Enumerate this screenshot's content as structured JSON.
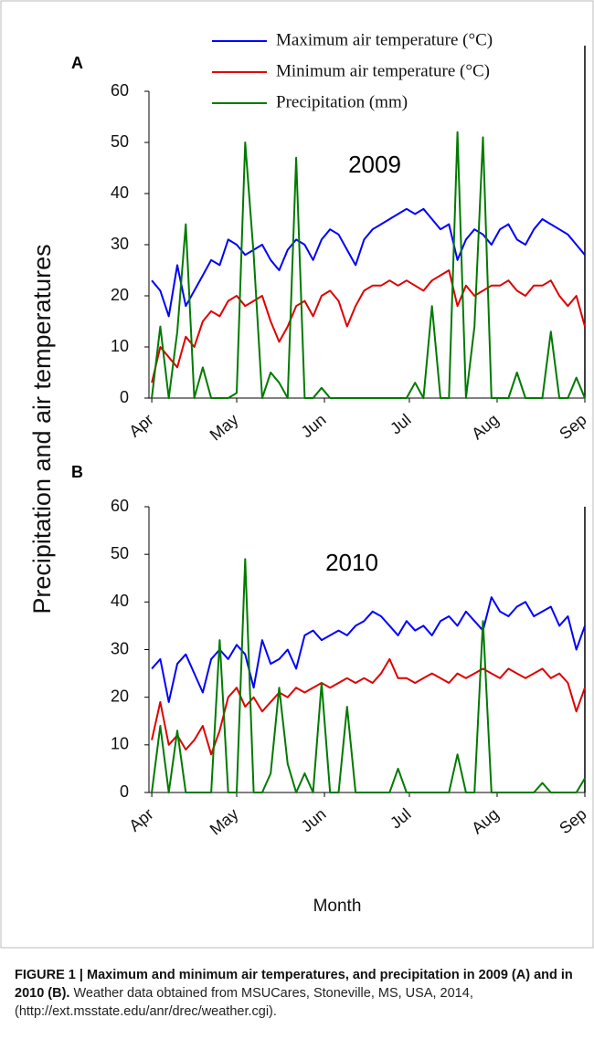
{
  "ylabel": "Precipitation and air temperatures",
  "xlabel": "Month",
  "caption": {
    "title": "FIGURE 1 | Maximum and minimum air temperatures, and precipitation in 2009 (A) and in 2010 (B).",
    "text": "Weather data obtained from MSUCares, Stoneville, MS, USA, 2014, (http://ext.msstate.edu/anr/drec/weather.cgi)."
  },
  "chart_data": [
    {
      "type": "line",
      "panel": "A",
      "annotation": "2009",
      "x": [
        0,
        3,
        6,
        9,
        12,
        15,
        18,
        21,
        24,
        27,
        30,
        33,
        36,
        39,
        42,
        45,
        48,
        51,
        54,
        57,
        60,
        63,
        66,
        69,
        72,
        75,
        78,
        81,
        84,
        87,
        90,
        93,
        96,
        99,
        102,
        105,
        108,
        111,
        114,
        117,
        120,
        123,
        126,
        129,
        132,
        135,
        138,
        141,
        144,
        147,
        150,
        153
      ],
      "xlim": [
        -1,
        153
      ],
      "ylim": [
        0,
        60
      ],
      "yticks": [
        0,
        10,
        20,
        30,
        40,
        50,
        60
      ],
      "xticks": [
        {
          "value": 0,
          "label": "Apr"
        },
        {
          "value": 30,
          "label": "May"
        },
        {
          "value": 61,
          "label": "Jun"
        },
        {
          "value": 91,
          "label": "Jul"
        },
        {
          "value": 122,
          "label": "Aug"
        },
        {
          "value": 153,
          "label": "Sep"
        }
      ],
      "series": [
        {
          "name": "Maximum air temperature (°C)",
          "color": "#0000ff",
          "values": [
            23,
            21,
            16,
            26,
            18,
            21,
            24,
            27,
            26,
            31,
            30,
            28,
            29,
            30,
            27,
            25,
            29,
            31,
            30,
            27,
            31,
            33,
            32,
            29,
            26,
            31,
            33,
            34,
            35,
            36,
            37,
            36,
            37,
            35,
            33,
            34,
            27,
            31,
            33,
            32,
            30,
            33,
            34,
            31,
            30,
            33,
            35,
            34,
            33,
            32,
            30,
            28
          ]
        },
        {
          "name": "Minimum air temperature (°C)",
          "color": "#e00000",
          "values": [
            3,
            10,
            8,
            6,
            12,
            10,
            15,
            17,
            16,
            19,
            20,
            18,
            19,
            20,
            15,
            11,
            14,
            18,
            19,
            16,
            20,
            21,
            19,
            14,
            18,
            21,
            22,
            22,
            23,
            22,
            23,
            22,
            21,
            23,
            24,
            25,
            18,
            22,
            20,
            21,
            22,
            22,
            23,
            21,
            20,
            22,
            22,
            23,
            20,
            18,
            20,
            14
          ]
        },
        {
          "name": "Precipitation (mm)",
          "color": "#007a00",
          "values": [
            0,
            14,
            0,
            13,
            34,
            0,
            6,
            0,
            0,
            0,
            1,
            50,
            28,
            0,
            5,
            3,
            0,
            47,
            0,
            0,
            2,
            0,
            0,
            0,
            0,
            0,
            0,
            0,
            0,
            0,
            0,
            3,
            0,
            18,
            0,
            0,
            52,
            0,
            14,
            51,
            0,
            0,
            0,
            5,
            0,
            0,
            0,
            13,
            0,
            0,
            4,
            0
          ]
        }
      ]
    },
    {
      "type": "line",
      "panel": "B",
      "annotation": "2010",
      "x": [
        0,
        3,
        6,
        9,
        12,
        15,
        18,
        21,
        24,
        27,
        30,
        33,
        36,
        39,
        42,
        45,
        48,
        51,
        54,
        57,
        60,
        63,
        66,
        69,
        72,
        75,
        78,
        81,
        84,
        87,
        90,
        93,
        96,
        99,
        102,
        105,
        108,
        111,
        114,
        117,
        120,
        123,
        126,
        129,
        132,
        135,
        138,
        141,
        144,
        147,
        150,
        153
      ],
      "xlim": [
        -1,
        153
      ],
      "ylim": [
        0,
        60
      ],
      "yticks": [
        0,
        10,
        20,
        30,
        40,
        50,
        60
      ],
      "xticks": [
        {
          "value": 0,
          "label": "Apr"
        },
        {
          "value": 30,
          "label": "May"
        },
        {
          "value": 61,
          "label": "Jun"
        },
        {
          "value": 91,
          "label": "Jul"
        },
        {
          "value": 122,
          "label": "Aug"
        },
        {
          "value": 153,
          "label": "Sep"
        }
      ],
      "series": [
        {
          "color": "#0000ff",
          "values": [
            26,
            28,
            19,
            27,
            29,
            25,
            21,
            28,
            30,
            28,
            31,
            29,
            22,
            32,
            27,
            28,
            30,
            26,
            33,
            34,
            32,
            33,
            34,
            33,
            35,
            36,
            38,
            37,
            35,
            33,
            36,
            34,
            35,
            33,
            36,
            37,
            35,
            38,
            36,
            34,
            41,
            38,
            37,
            39,
            40,
            37,
            38,
            39,
            35,
            37,
            30,
            35
          ]
        },
        {
          "color": "#e00000",
          "values": [
            11,
            19,
            10,
            12,
            9,
            11,
            14,
            8,
            13,
            20,
            22,
            18,
            20,
            17,
            19,
            21,
            20,
            22,
            21,
            22,
            23,
            22,
            23,
            24,
            23,
            24,
            23,
            25,
            28,
            24,
            24,
            23,
            24,
            25,
            24,
            23,
            25,
            24,
            25,
            26,
            25,
            24,
            26,
            25,
            24,
            25,
            26,
            24,
            25,
            23,
            17,
            22
          ]
        },
        {
          "color": "#007a00",
          "values": [
            0,
            14,
            0,
            13,
            0,
            0,
            0,
            0,
            32,
            0,
            0,
            49,
            0,
            0,
            4,
            22,
            6,
            0,
            4,
            0,
            23,
            0,
            0,
            18,
            0,
            0,
            0,
            0,
            0,
            5,
            0,
            0,
            0,
            0,
            0,
            0,
            8,
            0,
            0,
            36,
            0,
            0,
            0,
            0,
            0,
            0,
            2,
            0,
            0,
            0,
            0,
            3
          ]
        }
      ]
    }
  ]
}
